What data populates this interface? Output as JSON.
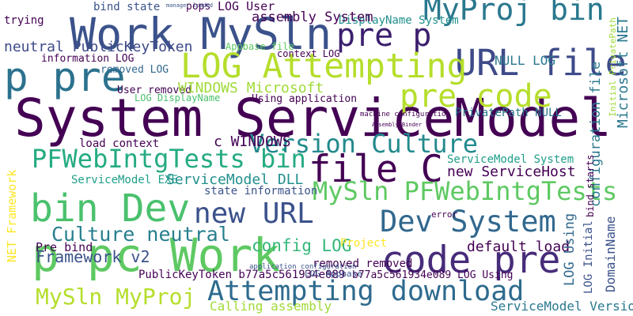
{
  "words": [
    "System ServiceModel",
    "Work MySln",
    "p pc Work",
    "file C",
    "bin Dev",
    "code pre",
    "Dev System",
    "pre code",
    "p pre",
    "pre p",
    "URL file",
    "MyProj bin",
    "LOG Attempting",
    "Attempting download",
    "new URL",
    "MySln PFWebIntgTests",
    "PFWebIntgTests bin",
    "Version Culture",
    "Culture neutral",
    "MySln MyProj",
    "config LOG",
    "Framework v2",
    "PublicKeyToken b77a5c561934e089",
    "b77a5c561934e089 LOG Using",
    "Calling assembly",
    "ServiceModel Version",
    "default load",
    "removed removed",
    "Pre bind",
    "Project",
    "ServiceModel EXE",
    "ServiceModel DLL",
    "state information",
    "load context",
    "c WINDOWS",
    "new ServiceHost",
    "ServiceModel System",
    "neutral PublicKeyToken",
    "information LOG",
    "removed LOG",
    "User removed",
    "WINDOWS Microsoft",
    "LOG DisplayName",
    "Using application",
    "PrivatePath NULL",
    "NULL LOG",
    "DisplayName System",
    "LOG User",
    "assembly System",
    "bind state",
    "pops",
    "trying",
    "Appbase file",
    "context LOG",
    "Microsoft NET",
    "configuration file",
    "LOG Initial",
    "LOG Using",
    "DomainName",
    "NET Framework",
    "bind starts",
    "Initial PrivatePath",
    "LOG Appbase",
    "error",
    "manager loaded",
    "application configuration",
    "machine configuration",
    "Assembly Binder"
  ]
}
